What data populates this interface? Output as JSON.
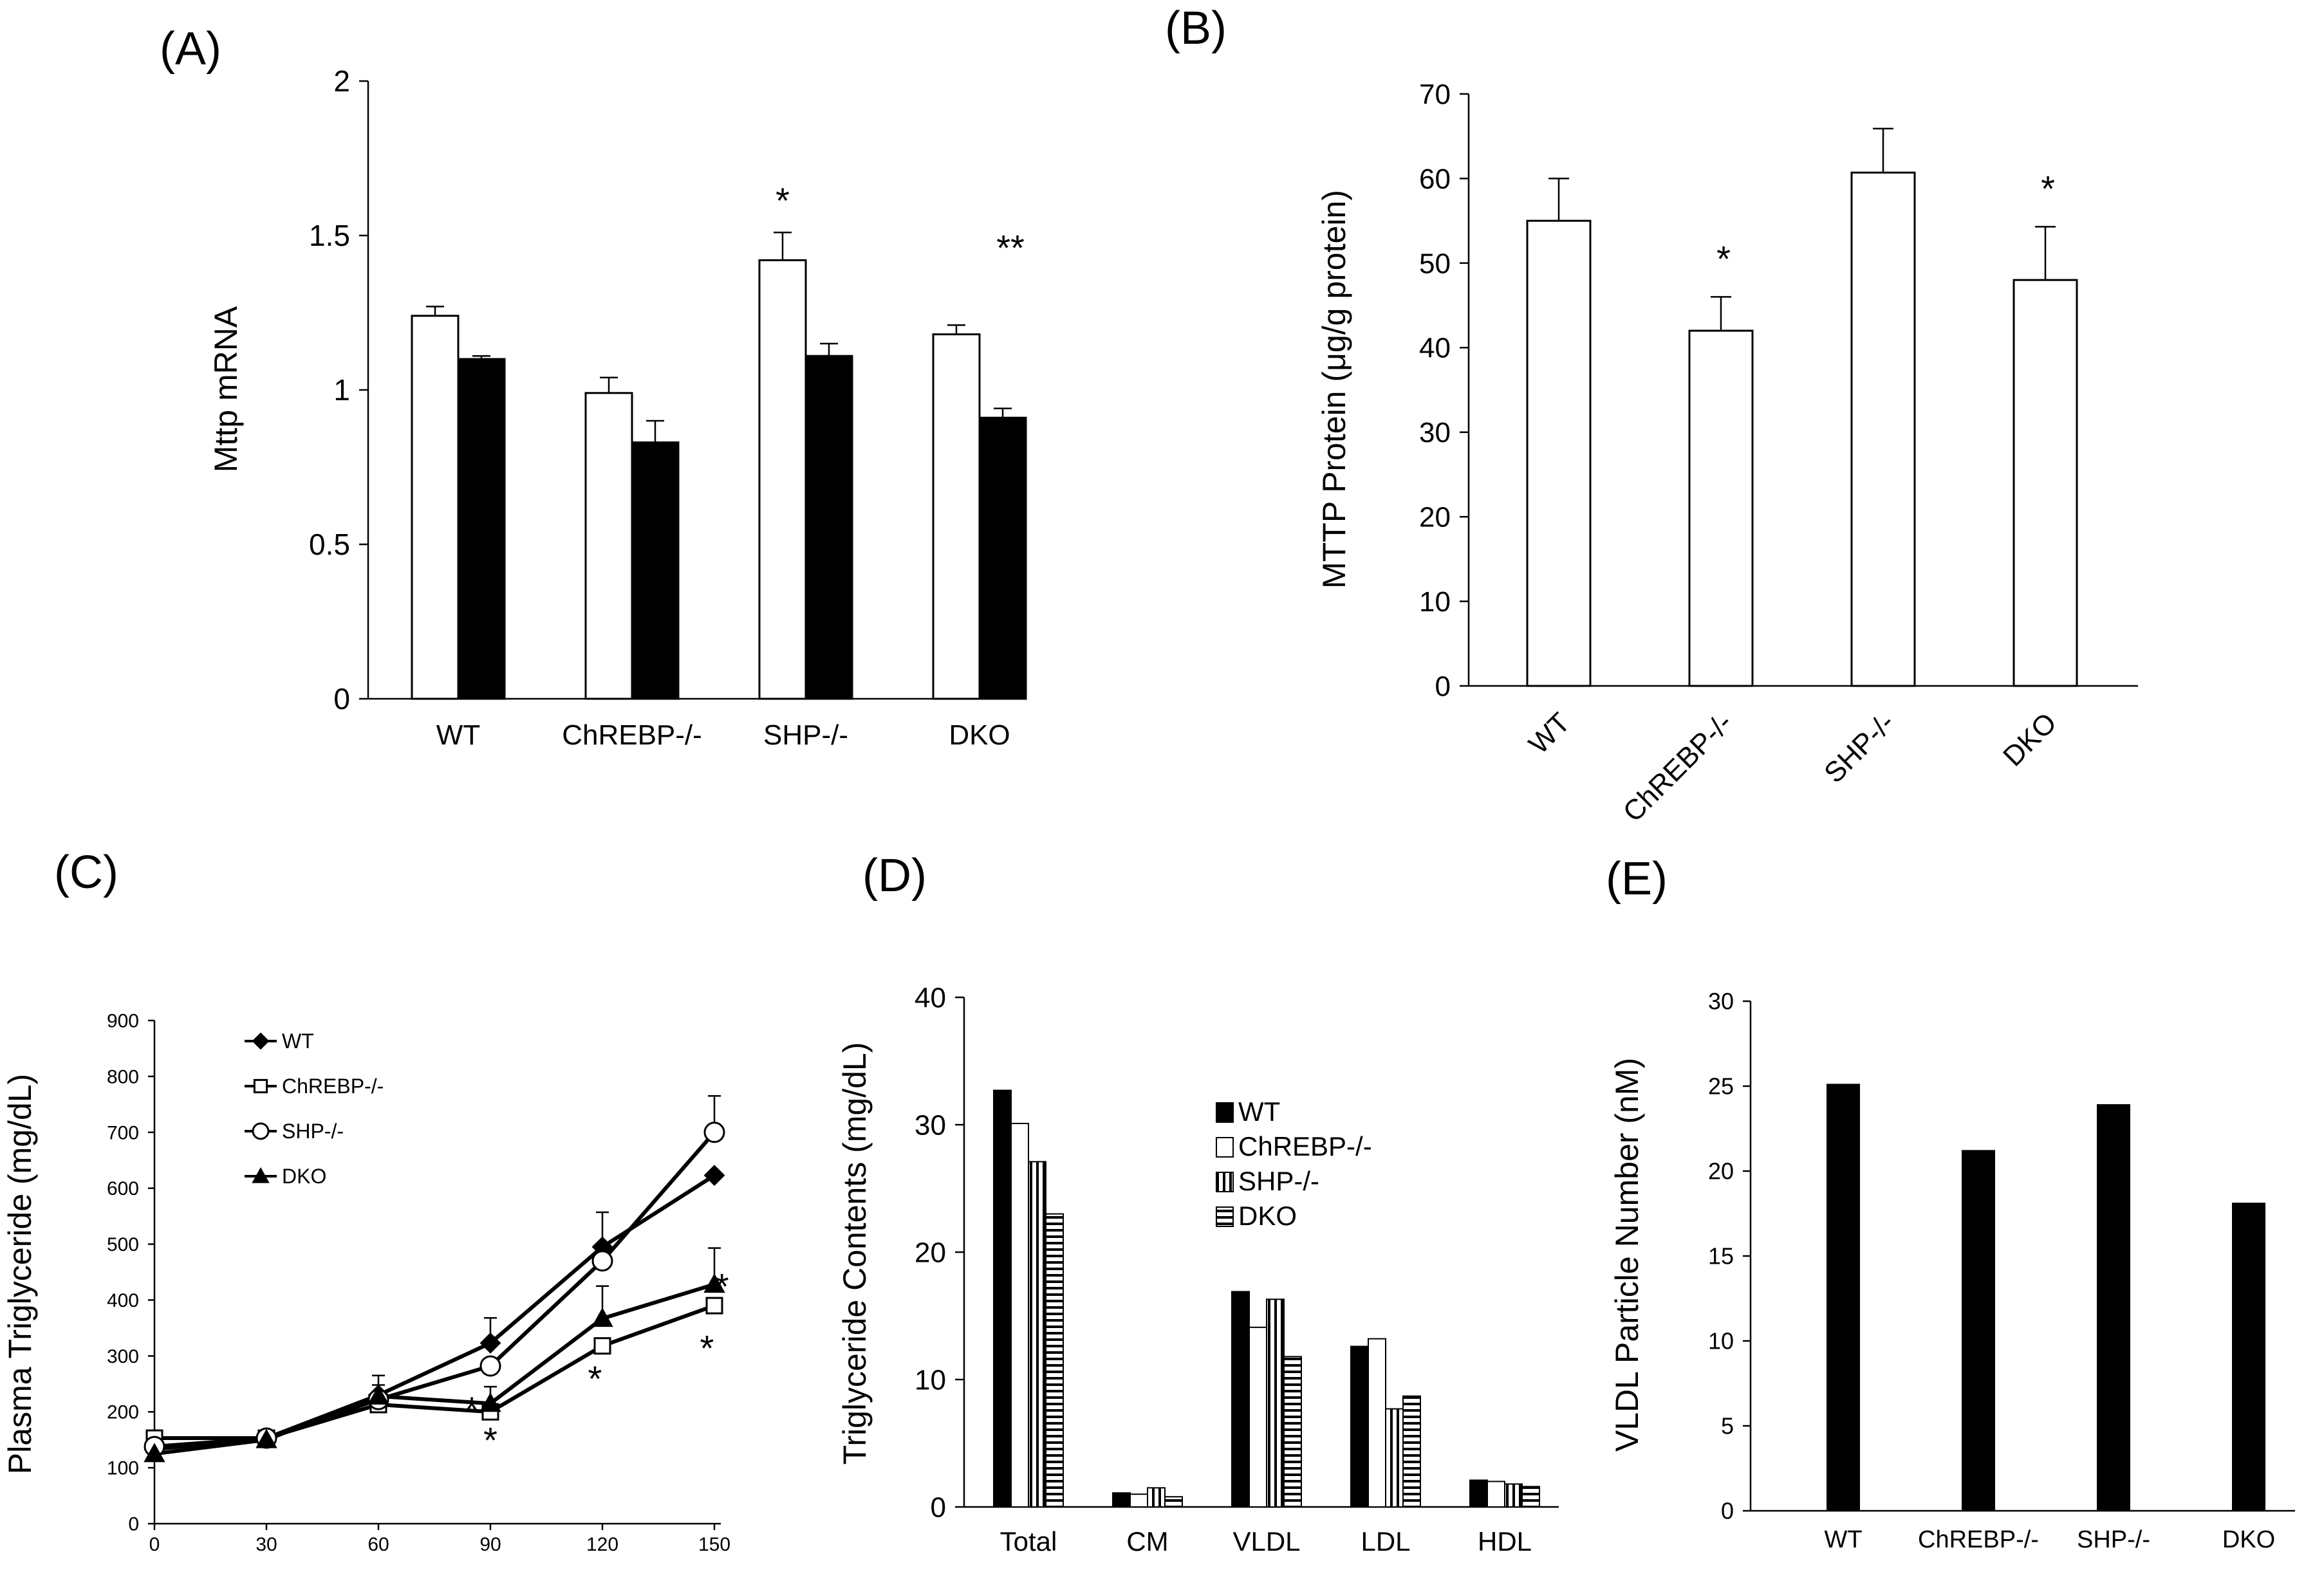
{
  "panels": {
    "A": "(A)",
    "B": "(B)",
    "C": "(C)",
    "D": "(D)",
    "E": "(E)"
  },
  "chart_data": [
    {
      "id": "A",
      "type": "bar",
      "ylabel": "Mttp mRNA",
      "ylim": [
        0,
        2
      ],
      "yticks": [
        0,
        0.5,
        1,
        1.5,
        2
      ],
      "ytick_labels": [
        "0",
        "0.5",
        "1",
        "1.5",
        "2"
      ],
      "categories": [
        "WT",
        "ChREBP-/-",
        "SHP-/-",
        "DKO"
      ],
      "series": [
        {
          "fill": "#ffffff",
          "values": [
            1.24,
            0.99,
            1.42,
            1.18
          ],
          "errors": [
            0.03,
            0.05,
            0.09,
            0.03
          ]
        },
        {
          "fill": "#000000",
          "values": [
            1.1,
            0.83,
            1.11,
            0.91
          ],
          "errors": [
            0.01,
            0.07,
            0.04,
            0.03
          ]
        }
      ],
      "annotations": [
        {
          "category": 2,
          "series": 0,
          "text": "*"
        },
        {
          "category": 3,
          "series": 1,
          "text": "**"
        }
      ]
    },
    {
      "id": "B",
      "type": "bar",
      "ylabel": "MTTP Protein (μg/g protein)",
      "ylim": [
        0,
        70
      ],
      "yticks": [
        0,
        10,
        20,
        30,
        40,
        50,
        60,
        70
      ],
      "ytick_labels": [
        "0",
        "10",
        "20",
        "30",
        "40",
        "50",
        "60",
        "70"
      ],
      "categories": [
        "WT",
        "ChREBP-/-",
        "SHP-/-",
        "DKO"
      ],
      "series": [
        {
          "fill": "#ffffff",
          "values": [
            55,
            42,
            60.7,
            48
          ],
          "errors": [
            5,
            4,
            5.2,
            6.3
          ]
        }
      ],
      "annotations": [
        {
          "category": 1,
          "series": 0,
          "text": "*"
        },
        {
          "category": 3,
          "series": 0,
          "text": "*"
        }
      ]
    },
    {
      "id": "C",
      "type": "line",
      "ylabel": "Plasma Triglyceride (mg/dL)",
      "ylim": [
        0,
        900
      ],
      "yticks": [
        0,
        100,
        200,
        300,
        400,
        500,
        600,
        700,
        800,
        900
      ],
      "ytick_labels": [
        "0",
        "100",
        "200",
        "300",
        "400",
        "500",
        "600",
        "700",
        "800",
        "900"
      ],
      "x": [
        0,
        30,
        60,
        90,
        120,
        150
      ],
      "xtick_labels": [
        "0",
        "30",
        "60",
        "90",
        "120",
        "150"
      ],
      "xlim": [
        0,
        150
      ],
      "series": [
        {
          "name": "WT",
          "marker": "diamond",
          "values": [
            133,
            153,
            230,
            323,
            495,
            623
          ],
          "errors": [
            0,
            0,
            35,
            45,
            62,
            0
          ]
        },
        {
          "name": "ChREBP-/-",
          "marker": "square",
          "values": [
            153,
            153,
            213,
            200,
            318,
            390
          ],
          "errors": [
            0,
            0,
            0,
            0,
            0,
            0
          ]
        },
        {
          "name": "SHP-/-",
          "marker": "circle",
          "values": [
            138,
            153,
            222,
            282,
            470,
            700
          ],
          "errors": [
            0,
            0,
            0,
            0,
            0,
            65
          ]
        },
        {
          "name": "DKO",
          "marker": "triangle",
          "values": [
            125,
            150,
            228,
            215,
            367,
            428
          ],
          "errors": [
            0,
            0,
            20,
            30,
            58,
            65
          ]
        }
      ],
      "legend": "upper-left",
      "annotations": [
        {
          "x": 85,
          "y": 205,
          "text": "*"
        },
        {
          "x": 90,
          "y": 150,
          "text": "*"
        },
        {
          "x": 118,
          "y": 260,
          "text": "*"
        },
        {
          "x": 148,
          "y": 315,
          "text": "*"
        },
        {
          "x": 152,
          "y": 425,
          "text": "*"
        }
      ]
    },
    {
      "id": "D",
      "type": "bar",
      "ylabel": "Triglyceride Contents (mg/dL)",
      "ylim": [
        0,
        40
      ],
      "yticks": [
        0,
        10,
        20,
        30,
        40
      ],
      "ytick_labels": [
        "0",
        "10",
        "20",
        "30",
        "40"
      ],
      "categories": [
        "Total",
        "CM",
        "VLDL",
        "LDL",
        "HDL"
      ],
      "series": [
        {
          "name": "WT",
          "pattern": "solid",
          "values": [
            32.7,
            1.1,
            16.9,
            12.6,
            2.1
          ]
        },
        {
          "name": "ChREBP-/-",
          "pattern": "empty",
          "values": [
            30.1,
            1.0,
            14.1,
            13.2,
            2.0
          ]
        },
        {
          "name": "SHP-/-",
          "pattern": "vertical",
          "values": [
            27.1,
            1.5,
            16.3,
            7.7,
            1.8
          ]
        },
        {
          "name": "DKO",
          "pattern": "horizontal",
          "values": [
            23.0,
            0.8,
            11.8,
            8.7,
            1.6
          ]
        }
      ],
      "legend": "upper-right"
    },
    {
      "id": "E",
      "type": "bar",
      "ylabel": "VLDL Particle Number (nM)",
      "ylim": [
        0,
        30
      ],
      "yticks": [
        0,
        5,
        10,
        15,
        20,
        25,
        30
      ],
      "ytick_labels": [
        "0",
        "5",
        "10",
        "15",
        "20",
        "25",
        "30"
      ],
      "categories": [
        "WT",
        "ChREBP-/-",
        "SHP-/-",
        "DKO"
      ],
      "series": [
        {
          "fill": "#000000",
          "values": [
            25.1,
            21.2,
            23.9,
            18.1
          ]
        }
      ]
    }
  ]
}
